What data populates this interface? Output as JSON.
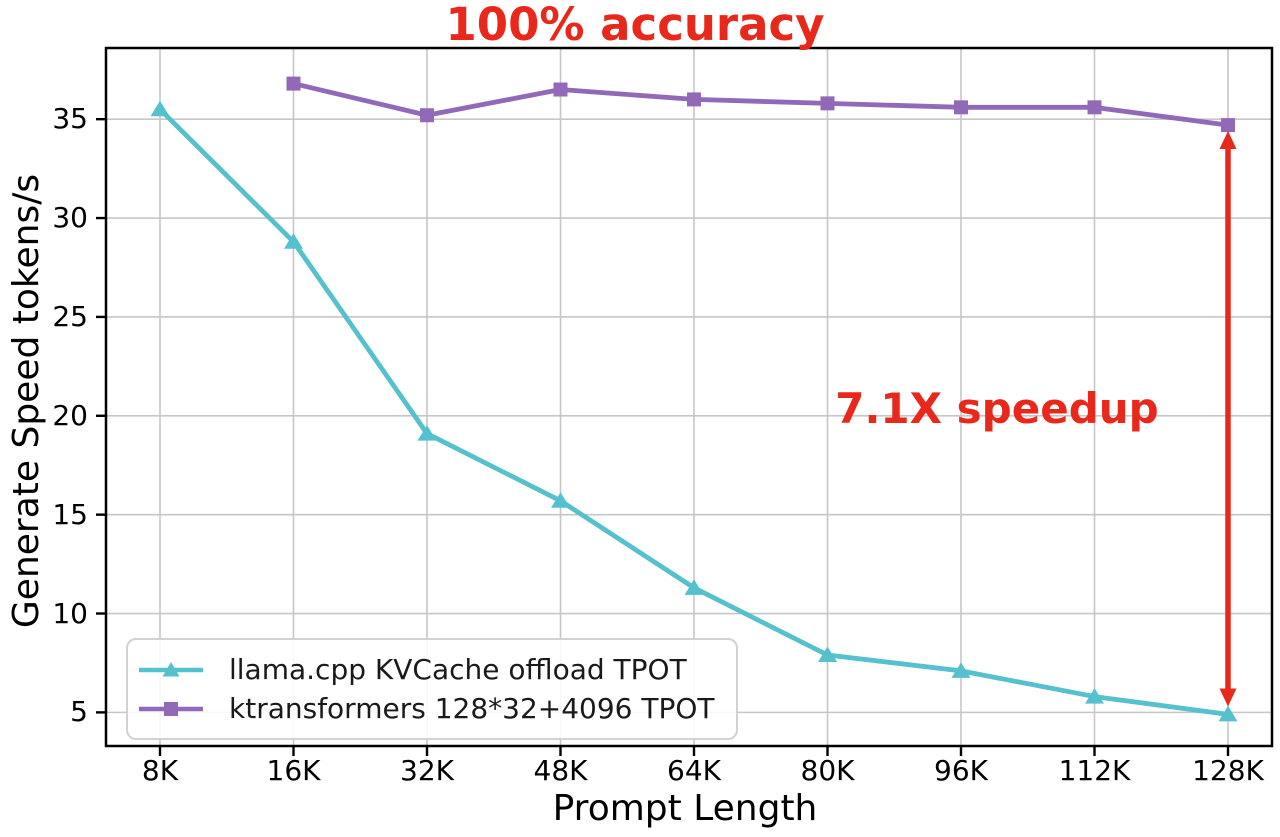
{
  "chart_data": {
    "type": "line",
    "categories": [
      "8K",
      "16K",
      "32K",
      "48K",
      "64K",
      "80K",
      "96K",
      "112K",
      "128K"
    ],
    "series": [
      {
        "name": "llama.cpp KVCache offload TPOT",
        "color": "#55c1ce",
        "marker": "triangle",
        "values": [
          35.5,
          28.8,
          19.1,
          15.7,
          11.3,
          7.9,
          7.1,
          5.8,
          4.9
        ]
      },
      {
        "name": "ktransformers 128*32+4096 TPOT",
        "color": "#9169b8",
        "marker": "square",
        "values": [
          null,
          36.8,
          35.2,
          36.5,
          36.0,
          35.8,
          35.6,
          35.6,
          34.7
        ]
      }
    ],
    "xlabel": "Prompt Length",
    "ylabel": "Generate Speed tokens/s",
    "yticks": [
      5,
      10,
      15,
      20,
      25,
      30,
      35
    ],
    "ylim": [
      3.3,
      38.6
    ],
    "grid": true,
    "legend_position": "lower-left",
    "annotations": {
      "top": {
        "text": "100% accuracy"
      },
      "speedup": {
        "text": "7.1X speedup"
      },
      "color": "#e9281c"
    },
    "arrow": {
      "x_category": "128K",
      "top_value": 34.4,
      "bottom_value": 5.3,
      "style": "double-headed-vertical",
      "color": "#e9281c"
    }
  }
}
